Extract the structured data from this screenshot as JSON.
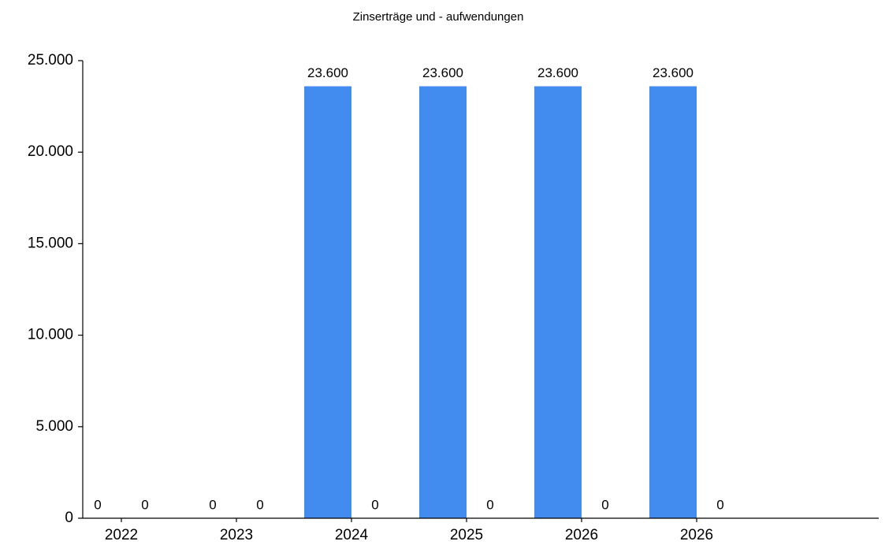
{
  "chart_data": {
    "type": "bar",
    "title": "Zinserträge und - aufwendungen",
    "xlabel": "",
    "ylabel": "",
    "categories": [
      "2022",
      "2023",
      "2024",
      "2025",
      "2026",
      "2026"
    ],
    "series": [
      {
        "values": [
          0,
          0,
          23600,
          23600,
          23600,
          23600
        ],
        "labels": [
          "0",
          "0",
          "23.600",
          "23.600",
          "23.600",
          "23.600"
        ],
        "color": "#428bef"
      },
      {
        "values": [
          0,
          0,
          0,
          0,
          0,
          0
        ],
        "labels": [
          "0",
          "0",
          "0",
          "0",
          "0",
          "0"
        ],
        "color": "#428bef"
      }
    ],
    "ylim": [
      0,
      25000
    ],
    "yticks": [
      0,
      5000,
      10000,
      15000,
      20000,
      25000
    ],
    "ytick_labels": [
      "0",
      "5.000",
      "10.000",
      "15.000",
      "20.000",
      "25.000"
    ],
    "grid": false,
    "legend": "none"
  }
}
